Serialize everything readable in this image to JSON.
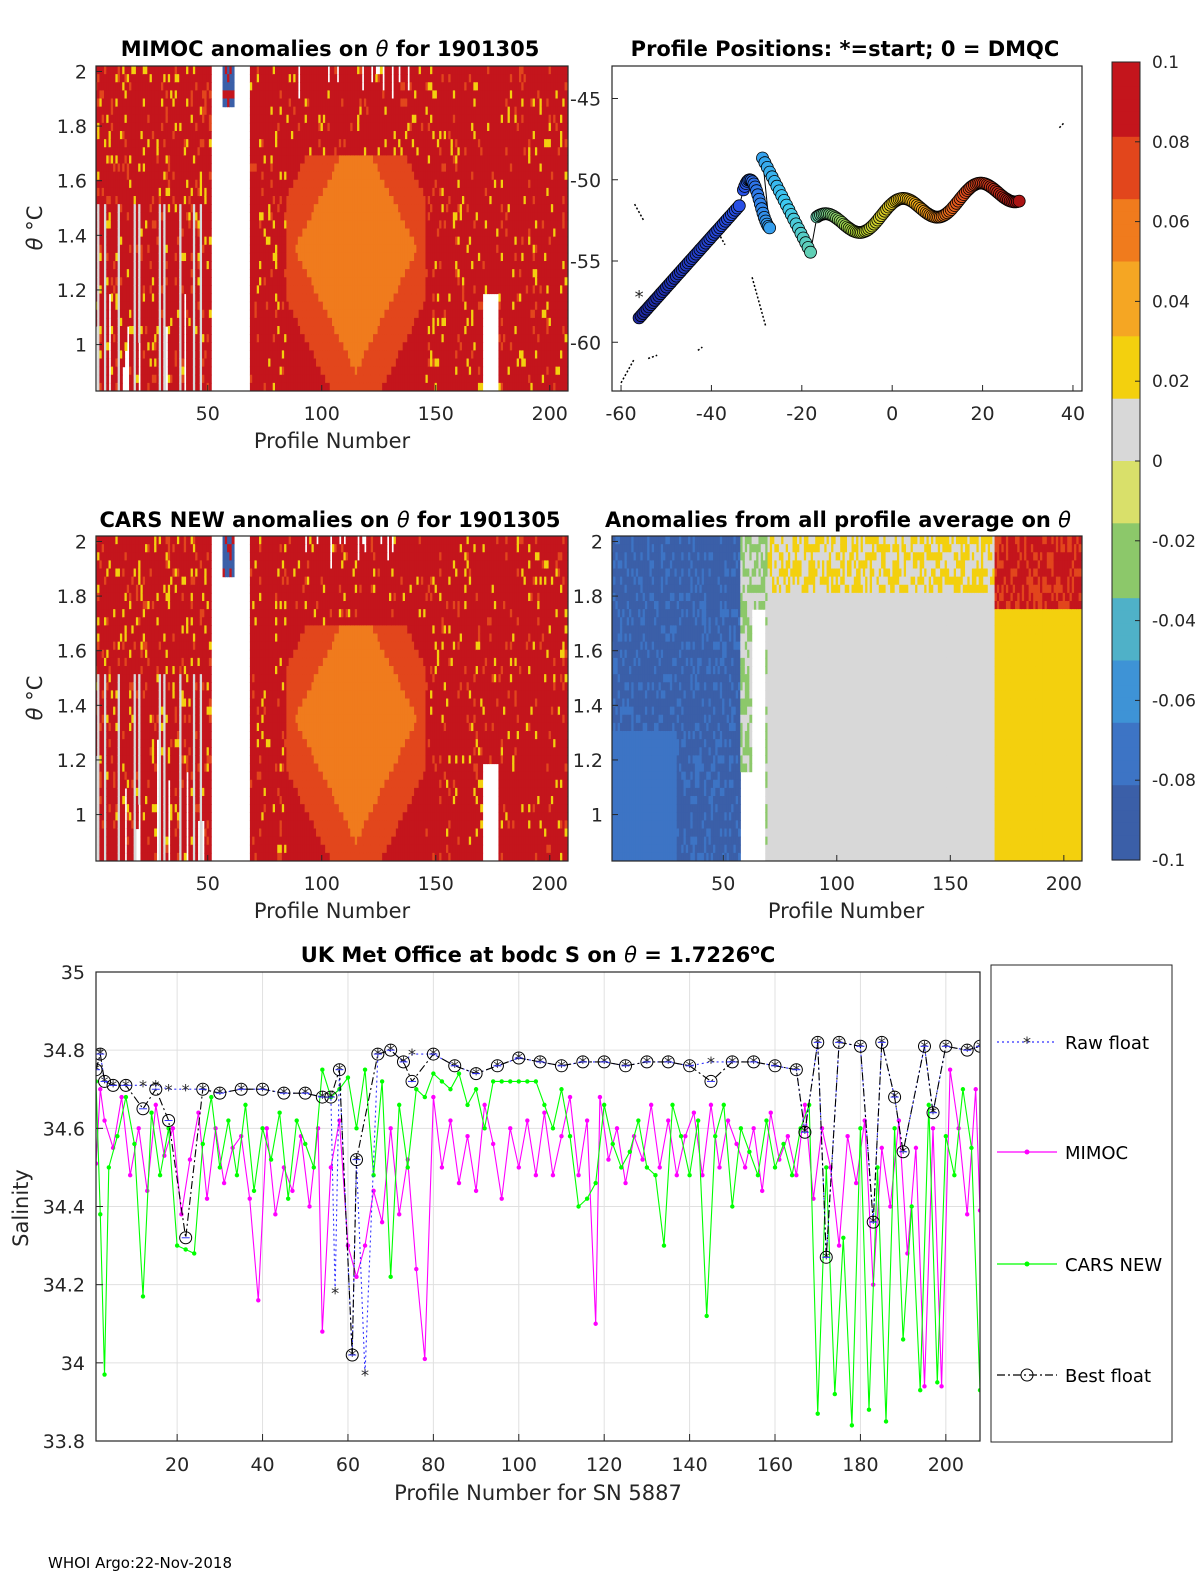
{
  "footer": "WHOI Argo:22-Nov-2018",
  "colorbar": {
    "ticks": [
      "0.1",
      "0.08",
      "0.06",
      "0.04",
      "0.02",
      "0",
      "-0.02",
      "-0.04",
      "-0.06",
      "-0.08",
      "-0.1"
    ],
    "ticks_shown": [
      "0.1",
      "0.08",
      "0.06",
      "0.04",
      "0.02",
      "0",
      "-0.02",
      "-0.04",
      "-0.06",
      "-0.08",
      "-0.1"
    ],
    "ylim": [
      -0.1,
      0.1
    ],
    "colors": [
      "#3b5fa8",
      "#3d74c5",
      "#3e93d6",
      "#4fb1c8",
      "#8cc86a",
      "#d9e06a",
      "#d8d8d8",
      "#f3d00e",
      "#f5a623",
      "#f07b1d",
      "#e2461c",
      "#c4151c"
    ]
  },
  "panels": {
    "mimoc": {
      "title_prefix": "MIMOC anomalies on ",
      "theta": "θ",
      "title_suffix": "  for 1901305",
      "xlabel": "Profile Number",
      "ylabel_theta": "θ",
      "ylabel_unit": " °C",
      "xticks": [
        "50",
        "100",
        "150",
        "200"
      ],
      "yticks": [
        "1",
        "1.2",
        "1.4",
        "1.6",
        "1.8",
        "2"
      ]
    },
    "positions": {
      "title": "Profile Positions: *=start; 0 = DMQC",
      "xticks": [
        "-60",
        "-40",
        "-20",
        "0",
        "20",
        "40"
      ],
      "yticks": [
        "-45",
        "-50",
        "-55",
        "-60"
      ]
    },
    "cars": {
      "title_prefix": "CARS NEW anomalies on ",
      "theta": "θ",
      "title_suffix": " for 1901305",
      "xlabel": "Profile Number",
      "ylabel_theta": "θ",
      "ylabel_unit": " °C",
      "xticks": [
        "50",
        "100",
        "150",
        "200"
      ],
      "yticks": [
        "1",
        "1.2",
        "1.4",
        "1.6",
        "1.8",
        "2"
      ]
    },
    "allavg": {
      "title_prefix": "Anomalies from all profile average on ",
      "theta": "θ",
      "xlabel": "Profile Number",
      "xticks": [
        "50",
        "100",
        "150",
        "200"
      ],
      "yticks": [
        "1",
        "1.2",
        "1.4",
        "1.6",
        "1.8",
        "2"
      ]
    }
  },
  "chart_data": {
    "type": "line",
    "title_prefix": "UK Met Office at bodc S on ",
    "theta": "θ",
    "title_value": " = 1.7226",
    "title_sup": "o",
    "title_unit": "C",
    "xlabel": "Profile Number for SN 5887",
    "ylabel": "Salinity",
    "xlim": [
      1,
      208
    ],
    "ylim": [
      33.8,
      35
    ],
    "xticks": [
      "20",
      "40",
      "60",
      "80",
      "100",
      "120",
      "140",
      "160",
      "180",
      "200"
    ],
    "yticks": [
      "33.8",
      "34",
      "34.2",
      "34.4",
      "34.6",
      "34.8",
      "35"
    ],
    "grid": true,
    "legend_position": "outside-right",
    "series": [
      {
        "name": "Raw float",
        "color": "#3232ff",
        "style": "dotted",
        "marker": "star",
        "x": [
          1,
          2,
          3,
          5,
          8,
          12,
          15,
          18,
          22,
          26,
          30,
          35,
          40,
          45,
          50,
          54,
          56,
          57,
          58,
          61,
          62,
          64,
          67,
          70,
          73,
          75,
          80,
          85,
          90,
          95,
          100,
          105,
          110,
          115,
          120,
          125,
          130,
          135,
          140,
          145,
          150,
          155,
          160,
          165,
          167,
          170,
          172,
          175,
          180,
          183,
          185,
          188,
          190,
          195,
          197,
          200,
          205,
          208
        ],
        "y": [
          34.75,
          34.79,
          34.72,
          34.71,
          34.71,
          34.71,
          34.71,
          34.7,
          34.7,
          34.7,
          34.69,
          34.7,
          34.7,
          34.69,
          34.69,
          34.68,
          34.68,
          34.18,
          34.75,
          34.02,
          34.52,
          33.97,
          34.79,
          34.8,
          34.77,
          34.79,
          34.79,
          34.76,
          34.74,
          34.76,
          34.78,
          34.77,
          34.76,
          34.77,
          34.77,
          34.76,
          34.77,
          34.77,
          34.76,
          34.77,
          34.77,
          34.77,
          34.76,
          34.75,
          34.59,
          34.82,
          34.27,
          34.82,
          34.81,
          34.36,
          34.82,
          34.68,
          34.54,
          34.81,
          34.64,
          34.81,
          34.8,
          34.81
        ]
      },
      {
        "name": "MIMOC",
        "color": "#ff00ff",
        "style": "solid",
        "marker": "dot",
        "x": [
          1,
          2,
          3,
          5,
          7,
          9,
          11,
          13,
          15,
          17,
          19,
          21,
          23,
          25,
          27,
          29,
          31,
          33,
          35,
          37,
          39,
          41,
          43,
          45,
          47,
          49,
          51,
          53,
          54,
          56,
          58,
          60,
          62,
          64,
          66,
          68,
          70,
          72,
          74,
          76,
          78,
          80,
          82,
          84,
          86,
          88,
          90,
          92,
          94,
          96,
          98,
          100,
          102,
          104,
          106,
          108,
          110,
          112,
          114,
          116,
          118,
          119,
          121,
          123,
          125,
          127,
          129,
          131,
          133,
          135,
          137,
          139,
          141,
          143,
          145,
          147,
          149,
          151,
          153,
          155,
          157,
          159,
          161,
          163,
          165,
          167,
          169,
          171,
          173,
          175,
          177,
          179,
          181,
          183,
          185,
          187,
          189,
          191,
          193,
          195,
          197,
          199,
          201,
          203,
          205,
          207,
          208
        ],
        "y": [
          34.51,
          34.7,
          34.62,
          34.55,
          34.68,
          34.48,
          34.6,
          34.44,
          34.66,
          34.53,
          34.6,
          34.38,
          34.52,
          34.64,
          34.42,
          34.6,
          34.46,
          34.55,
          34.58,
          34.42,
          34.16,
          34.6,
          34.38,
          34.5,
          34.44,
          34.58,
          34.4,
          34.6,
          34.08,
          34.5,
          34.62,
          34.3,
          34.22,
          34.3,
          34.44,
          34.36,
          34.6,
          34.38,
          34.52,
          34.24,
          34.01,
          34.68,
          34.5,
          34.62,
          34.46,
          34.58,
          34.44,
          34.66,
          34.56,
          34.42,
          34.6,
          34.5,
          34.62,
          34.48,
          34.64,
          34.48,
          34.58,
          34.68,
          34.48,
          34.62,
          34.1,
          34.68,
          34.52,
          34.6,
          34.46,
          34.58,
          34.52,
          34.66,
          34.5,
          34.62,
          34.48,
          34.58,
          34.64,
          34.48,
          34.66,
          34.5,
          34.62,
          34.56,
          34.5,
          34.6,
          34.44,
          34.64,
          34.52,
          34.58,
          34.48,
          34.66,
          34.42,
          34.6,
          34.5,
          34.3,
          34.58,
          34.46,
          34.62,
          34.2,
          34.55,
          34.4,
          34.62,
          34.28,
          34.55,
          33.94,
          34.6,
          33.94,
          34.75,
          34.6,
          34.38,
          34.7,
          34.39
        ]
      },
      {
        "name": "CARS NEW",
        "color": "#00ff00",
        "style": "solid",
        "marker": "dot",
        "x": [
          1,
          2,
          3,
          4,
          6,
          8,
          10,
          12,
          14,
          16,
          18,
          20,
          22,
          24,
          26,
          28,
          30,
          32,
          34,
          36,
          38,
          40,
          42,
          44,
          46,
          48,
          50,
          52,
          54,
          56,
          58,
          60,
          62,
          64,
          66,
          68,
          70,
          72,
          74,
          76,
          78,
          80,
          82,
          84,
          86,
          88,
          90,
          92,
          94,
          96,
          98,
          100,
          102,
          104,
          106,
          108,
          110,
          112,
          114,
          116,
          118,
          120,
          122,
          124,
          126,
          128,
          130,
          132,
          134,
          136,
          138,
          140,
          142,
          144,
          146,
          148,
          150,
          152,
          154,
          156,
          158,
          160,
          162,
          164,
          166,
          168,
          170,
          172,
          174,
          176,
          178,
          180,
          182,
          184,
          186,
          188,
          190,
          192,
          194,
          196,
          198,
          200,
          202,
          204,
          206,
          208
        ],
        "y": [
          34.72,
          34.38,
          33.97,
          34.5,
          34.58,
          34.68,
          34.56,
          34.17,
          34.64,
          34.48,
          34.6,
          34.3,
          34.29,
          34.28,
          34.56,
          34.68,
          34.5,
          34.62,
          34.48,
          34.66,
          34.44,
          34.6,
          34.52,
          34.64,
          34.42,
          34.62,
          34.56,
          34.5,
          34.75,
          34.68,
          34.7,
          34.73,
          34.6,
          34.75,
          34.48,
          34.72,
          34.22,
          34.66,
          34.5,
          34.7,
          34.68,
          34.74,
          34.72,
          34.7,
          34.74,
          34.66,
          34.7,
          34.6,
          34.72,
          34.72,
          34.72,
          34.72,
          34.72,
          34.72,
          34.66,
          34.6,
          34.7,
          34.58,
          34.4,
          34.42,
          34.46,
          34.66,
          34.56,
          34.5,
          34.54,
          34.62,
          34.5,
          34.48,
          34.3,
          34.66,
          34.58,
          34.48,
          34.62,
          34.12,
          34.58,
          34.66,
          34.4,
          34.6,
          34.54,
          34.48,
          34.62,
          34.5,
          34.56,
          34.48,
          34.6,
          34.66,
          33.87,
          34.5,
          33.92,
          34.32,
          33.84,
          34.6,
          33.88,
          34.5,
          33.85,
          34.6,
          34.06,
          34.4,
          33.93,
          34.66,
          33.95,
          34.58,
          34.48,
          34.7,
          34.55,
          33.93
        ]
      },
      {
        "name": "Best float",
        "color": "#000000",
        "style": "dashdot",
        "marker": "circle",
        "x": [
          1,
          2,
          3,
          5,
          8,
          12,
          15,
          18,
          22,
          26,
          30,
          35,
          40,
          45,
          50,
          54,
          56,
          58,
          61,
          62,
          67,
          70,
          73,
          75,
          80,
          85,
          90,
          95,
          100,
          105,
          110,
          115,
          120,
          125,
          130,
          135,
          140,
          145,
          150,
          155,
          160,
          165,
          167,
          170,
          172,
          175,
          180,
          183,
          185,
          188,
          190,
          195,
          197,
          200,
          205,
          208
        ],
        "y": [
          34.75,
          34.79,
          34.72,
          34.71,
          34.71,
          34.65,
          34.7,
          34.62,
          34.32,
          34.7,
          34.69,
          34.7,
          34.7,
          34.69,
          34.69,
          34.68,
          34.68,
          34.75,
          34.02,
          34.52,
          34.79,
          34.8,
          34.77,
          34.72,
          34.79,
          34.76,
          34.74,
          34.76,
          34.78,
          34.77,
          34.76,
          34.77,
          34.77,
          34.76,
          34.77,
          34.77,
          34.76,
          34.72,
          34.77,
          34.77,
          34.76,
          34.75,
          34.59,
          34.82,
          34.27,
          34.82,
          34.81,
          34.36,
          34.82,
          34.68,
          34.54,
          34.81,
          34.64,
          34.81,
          34.8,
          34.81
        ]
      }
    ]
  }
}
